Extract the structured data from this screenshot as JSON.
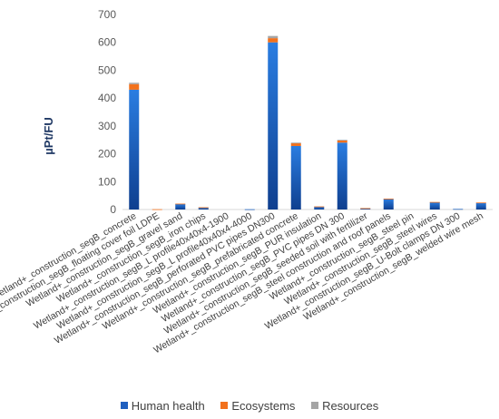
{
  "chart_data": {
    "type": "bar",
    "stacked": true,
    "title": "",
    "xlabel": "",
    "ylabel": "µPt/FU",
    "ylim": [
      0,
      700
    ],
    "yticks": [
      0,
      100,
      200,
      300,
      400,
      500,
      600,
      700
    ],
    "grid": false,
    "legend_position": "bottom",
    "categories": [
      "Wetland+_construction_segB_concrete",
      "Wetland+_construction_segB_floating cover foil LDPE",
      "Wetland+_construction_segB_gravel sand",
      "Wetland+_construction_segB_iron chips",
      "Wetland+_construction_segB_L profile40x40x4-1900",
      "Wetland+_construction_segB_L profile40x40x4-4000",
      "Wetland+_construction_segB_perforated PVC pipes DN300",
      "Wetland+_construction_segB_prefabricated concrete",
      "Wetland+_construction_segB_PUR insulation",
      "Wetland+_construction_segB_PVC pipes DN 300",
      "Wetland+_construction_segB_seeded soil with fertilizer",
      "Wetland+_construction_segB_steel construction and roof panels",
      "Wetland+_construction_segB_steel pin",
      "Wetland+_construction_segB_steel wires",
      "Wetland+_construction_segB_U-Bolt clamps DN 300",
      "Wetland+_construction_segB_welded wire mesh"
    ],
    "series": [
      {
        "name": "Human health",
        "color": "#1f5fbf",
        "values": [
          430,
          0,
          20,
          7,
          0,
          1,
          600,
          228,
          10,
          240,
          4,
          38,
          0,
          26,
          2,
          24
        ]
      },
      {
        "name": "Ecosystems",
        "color": "#f2711c",
        "values": [
          20,
          1,
          1,
          1,
          0,
          0,
          15,
          10,
          1,
          8,
          1,
          1,
          0,
          1,
          0,
          1
        ]
      },
      {
        "name": "Resources",
        "color": "#a5a5a5",
        "values": [
          5,
          0,
          0,
          0,
          0,
          0,
          8,
          2,
          0,
          2,
          0,
          0,
          0,
          0,
          0,
          0
        ]
      }
    ]
  }
}
